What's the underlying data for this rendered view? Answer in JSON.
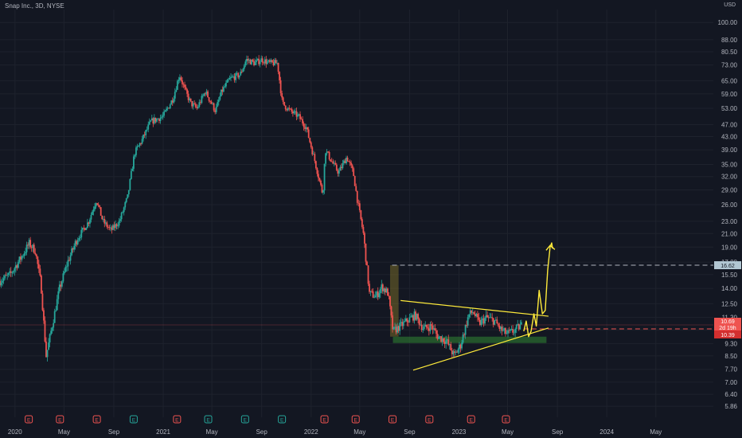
{
  "header": {
    "title": "Snap Inc., 3D, NYSE",
    "currency": "USD"
  },
  "price_tags": {
    "target": "16.62",
    "current": "10.69",
    "countdown": "2d 19h",
    "low": "10.39"
  },
  "colors": {
    "up": "#26a69a",
    "down": "#ef5350",
    "drawing": "#ffeb3b",
    "target_line": "#b2b5be",
    "current_line": "#ef5350",
    "grid": "#1e222d",
    "bg": "#131722"
  },
  "chart_data": {
    "type": "candlestick",
    "title": "Snap Inc., 3D, NYSE",
    "scale": "log",
    "ylim": [
      5.4,
      110
    ],
    "xlim": [
      "2019-11-25",
      "2024-09-20"
    ],
    "y_ticks": [
      "100.00",
      "88.00",
      "80.50",
      "73.00",
      "65.00",
      "59.00",
      "53.00",
      "47.00",
      "43.00",
      "39.00",
      "35.00",
      "32.00",
      "29.00",
      "26.00",
      "23.00",
      "21.00",
      "19.00",
      "17.00",
      "15.50",
      "14.00",
      "12.50",
      "11.30",
      "10.30",
      "9.30",
      "8.50",
      "7.70",
      "7.00",
      "6.40",
      "5.86"
    ],
    "x_ticks": [
      {
        "label": "2020",
        "date": "2020-01-01"
      },
      {
        "label": "May",
        "date": "2020-05-01"
      },
      {
        "label": "Sep",
        "date": "2020-09-01"
      },
      {
        "label": "2021",
        "date": "2021-01-01"
      },
      {
        "label": "May",
        "date": "2021-05-01"
      },
      {
        "label": "Sep",
        "date": "2021-09-01"
      },
      {
        "label": "2022",
        "date": "2022-01-01"
      },
      {
        "label": "May",
        "date": "2022-05-01"
      },
      {
        "label": "Sep",
        "date": "2022-09-01"
      },
      {
        "label": "2023",
        "date": "2023-01-01"
      },
      {
        "label": "May",
        "date": "2023-05-01"
      },
      {
        "label": "Sep",
        "date": "2023-09-01"
      },
      {
        "label": "2024",
        "date": "2024-01-01"
      },
      {
        "label": "May",
        "date": "2024-05-01"
      }
    ],
    "price_path": [
      [
        "2019-11-25",
        14.8
      ],
      [
        "2019-12-20",
        15.5
      ],
      [
        "2020-01-15",
        17.5
      ],
      [
        "2020-02-05",
        19.5
      ],
      [
        "2020-02-20",
        18.5
      ],
      [
        "2020-03-05",
        14.5
      ],
      [
        "2020-03-18",
        8.5
      ],
      [
        "2020-04-01",
        10.5
      ],
      [
        "2020-04-20",
        14.0
      ],
      [
        "2020-05-10",
        17.0
      ],
      [
        "2020-06-01",
        20.0
      ],
      [
        "2020-07-01",
        23.0
      ],
      [
        "2020-07-20",
        27.0
      ],
      [
        "2020-08-05",
        23.0
      ],
      [
        "2020-08-25",
        21.5
      ],
      [
        "2020-09-15",
        23.0
      ],
      [
        "2020-10-05",
        27.5
      ],
      [
        "2020-10-22",
        38.0
      ],
      [
        "2020-11-10",
        42.0
      ],
      [
        "2020-12-01",
        48.0
      ],
      [
        "2021-01-01",
        50.0
      ],
      [
        "2021-01-25",
        57.0
      ],
      [
        "2021-02-10",
        68.0
      ],
      [
        "2021-02-25",
        60.0
      ],
      [
        "2021-03-10",
        55.0
      ],
      [
        "2021-03-25",
        53.0
      ],
      [
        "2021-04-15",
        60.0
      ],
      [
        "2021-05-10",
        52.0
      ],
      [
        "2021-05-25",
        60.0
      ],
      [
        "2021-06-15",
        66.0
      ],
      [
        "2021-07-10",
        68.0
      ],
      [
        "2021-07-25",
        76.0
      ],
      [
        "2021-08-15",
        74.0
      ],
      [
        "2021-09-01",
        76.0
      ],
      [
        "2021-09-20",
        74.0
      ],
      [
        "2021-10-10",
        74.0
      ],
      [
        "2021-10-22",
        55.0
      ],
      [
        "2021-11-10",
        52.0
      ],
      [
        "2021-12-01",
        50.0
      ],
      [
        "2021-12-20",
        46.0
      ],
      [
        "2022-01-10",
        36.0
      ],
      [
        "2022-01-30",
        28.0
      ],
      [
        "2022-02-05",
        39.0
      ],
      [
        "2022-02-25",
        35.0
      ],
      [
        "2022-03-10",
        33.0
      ],
      [
        "2022-03-30",
        37.0
      ],
      [
        "2022-04-15",
        33.0
      ],
      [
        "2022-04-25",
        27.0
      ],
      [
        "2022-05-10",
        21.0
      ],
      [
        "2022-05-25",
        13.5
      ],
      [
        "2022-06-10",
        13.2
      ],
      [
        "2022-06-25",
        14.2
      ],
      [
        "2022-07-10",
        13.5
      ],
      [
        "2022-07-22",
        10.2
      ],
      [
        "2022-08-05",
        10.5
      ],
      [
        "2022-08-25",
        11.0
      ],
      [
        "2022-09-15",
        11.5
      ],
      [
        "2022-10-05",
        10.4
      ],
      [
        "2022-10-25",
        10.6
      ],
      [
        "2022-11-10",
        9.8
      ],
      [
        "2022-12-01",
        9.5
      ],
      [
        "2022-12-20",
        8.5
      ],
      [
        "2023-01-05",
        9.2
      ],
      [
        "2023-01-25",
        11.5
      ],
      [
        "2023-02-05",
        11.8
      ],
      [
        "2023-02-20",
        10.8
      ],
      [
        "2023-03-10",
        11.3
      ],
      [
        "2023-03-30",
        11.0
      ],
      [
        "2023-04-15",
        10.3
      ],
      [
        "2023-04-30",
        10.0
      ],
      [
        "2023-05-15",
        10.2
      ],
      [
        "2023-06-05",
        10.69
      ]
    ],
    "current_price": 10.69,
    "target_price": 16.62,
    "drawings": {
      "upper_trendline": [
        [
          "2022-08-10",
          12.8
        ],
        [
          "2023-08-10",
          11.4
        ]
      ],
      "lower_trendline": [
        [
          "2022-09-10",
          7.65
        ],
        [
          "2023-08-10",
          10.45
        ]
      ],
      "support_zone": {
        "from": "2022-07-22",
        "to": "2023-08-05",
        "low": 9.35,
        "high": 9.8
      },
      "drop_zone": {
        "from": "2022-07-15",
        "to": "2022-08-05",
        "low": 9.8,
        "high": 16.62
      },
      "projection_path": [
        [
          "2023-06-10",
          10.2
        ],
        [
          "2023-06-16",
          11.0
        ],
        [
          "2023-06-22",
          9.8
        ],
        [
          "2023-06-28",
          10.2
        ],
        [
          "2023-07-05",
          11.6
        ],
        [
          "2023-07-11",
          10.6
        ],
        [
          "2023-07-18",
          13.8
        ],
        [
          "2023-07-26",
          11.6
        ],
        [
          "2023-08-02",
          11.9
        ],
        [
          "2023-08-08",
          16.0
        ],
        [
          "2023-08-14",
          19.0
        ],
        [
          "2023-08-18",
          19.6
        ],
        [
          "2023-08-20",
          18.8
        ]
      ]
    },
    "earnings_markers": [
      {
        "date": "2020-02-04",
        "type": "E",
        "result": "down"
      },
      {
        "date": "2020-04-21",
        "type": "E",
        "result": "down"
      },
      {
        "date": "2020-07-21",
        "type": "E",
        "result": "down"
      },
      {
        "date": "2020-10-20",
        "type": "E",
        "result": "up"
      },
      {
        "date": "2021-02-04",
        "type": "E",
        "result": "down"
      },
      {
        "date": "2021-04-22",
        "type": "E",
        "result": "up"
      },
      {
        "date": "2021-07-22",
        "type": "E",
        "result": "up"
      },
      {
        "date": "2021-10-21",
        "type": "E",
        "result": "up"
      },
      {
        "date": "2022-02-03",
        "type": "E",
        "result": "down"
      },
      {
        "date": "2022-04-21",
        "type": "E",
        "result": "down"
      },
      {
        "date": "2022-07-21",
        "type": "E",
        "result": "down"
      },
      {
        "date": "2022-10-20",
        "type": "E",
        "result": "down"
      },
      {
        "date": "2023-01-31",
        "type": "E",
        "result": "down"
      },
      {
        "date": "2023-04-27",
        "type": "E",
        "result": "down"
      }
    ]
  }
}
